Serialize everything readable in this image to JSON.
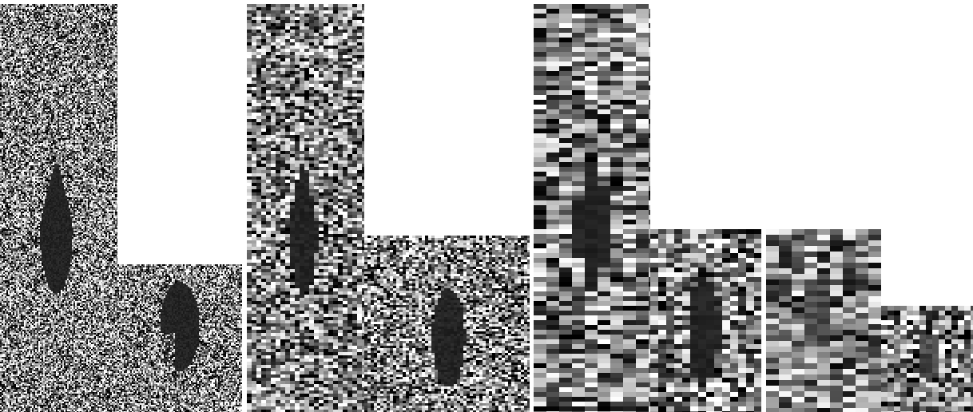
{
  "image": {
    "description_free": true,
    "background_color": "#ffffff",
    "panels": [
      {
        "id": "scale-1-tall",
        "grain": [
          2,
          2
        ],
        "target": "elongated-dark-blob",
        "noise_contrast": 0.95
      },
      {
        "id": "scale-1-short",
        "grain": [
          2,
          2
        ],
        "target": "irregular-dark-blob",
        "noise_contrast": 0.95
      },
      {
        "id": "scale-2-tall",
        "grain": [
          6,
          4
        ],
        "target": "elongated-dark-blob",
        "noise_contrast": 0.85
      },
      {
        "id": "scale-2-short",
        "grain": [
          4,
          3
        ],
        "target": "irregular-dark-blob",
        "noise_contrast": 0.9
      },
      {
        "id": "scale-3-tall",
        "grain": [
          16,
          6
        ],
        "target": "elongated-dark-blob",
        "noise_contrast": 0.8
      },
      {
        "id": "scale-3-short",
        "grain": [
          10,
          6
        ],
        "target": "irregular-dark-blob",
        "noise_contrast": 0.85
      },
      {
        "id": "scale-4-tall",
        "grain": [
          16,
          7
        ],
        "target": "faint-dark-blob",
        "noise_contrast": 0.75
      },
      {
        "id": "scale-4-short",
        "grain": [
          8,
          6
        ],
        "target": "faint-dark-blob",
        "noise_contrast": 0.85
      }
    ]
  }
}
